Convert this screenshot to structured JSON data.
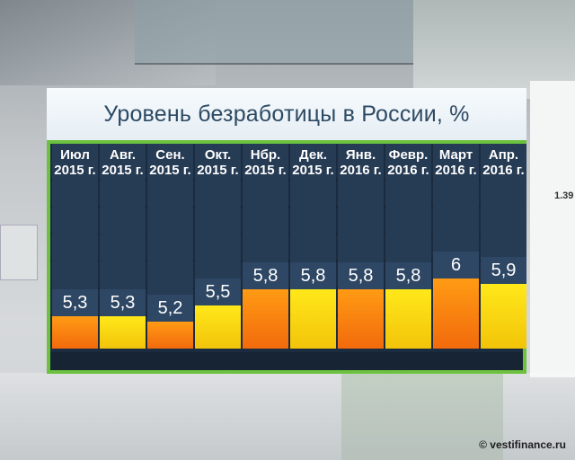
{
  "title": "Уровень безработицы в России, %",
  "credit": "© vestifinance.ru",
  "side_number": "1.39",
  "colors": {
    "orange": "#f26a0c",
    "yellow": "#f2c40a",
    "accent": "#6cc13e",
    "panel": "#1c2c40"
  },
  "chart_data": {
    "type": "bar",
    "title": "Уровень безработицы в России, %",
    "categories": [
      [
        "Июл",
        "2015 г."
      ],
      [
        "Авг.",
        "2015 г."
      ],
      [
        "Сен.",
        "2015 г."
      ],
      [
        "Окт.",
        "2015 г."
      ],
      [
        "Нбр.",
        "2015 г."
      ],
      [
        "Дек.",
        "2015 г."
      ],
      [
        "Янв.",
        "2016 г."
      ],
      [
        "Февр.",
        "2016 г."
      ],
      [
        "Март",
        "2016 г."
      ],
      [
        "Апр.",
        "2016 г."
      ]
    ],
    "values": [
      5.3,
      5.3,
      5.2,
      5.5,
      5.8,
      5.8,
      5.8,
      5.8,
      6,
      5.9
    ],
    "labels": [
      "5,3",
      "5,3",
      "5,2",
      "5,5",
      "5,8",
      "5,8",
      "5,8",
      "5,8",
      "6",
      "5,9"
    ],
    "bar_colors": [
      "orange",
      "yellow",
      "orange",
      "yellow",
      "orange",
      "yellow",
      "orange",
      "yellow",
      "orange",
      "yellow"
    ],
    "xlabel": "",
    "ylabel": "",
    "grid": true,
    "legend": false
  }
}
